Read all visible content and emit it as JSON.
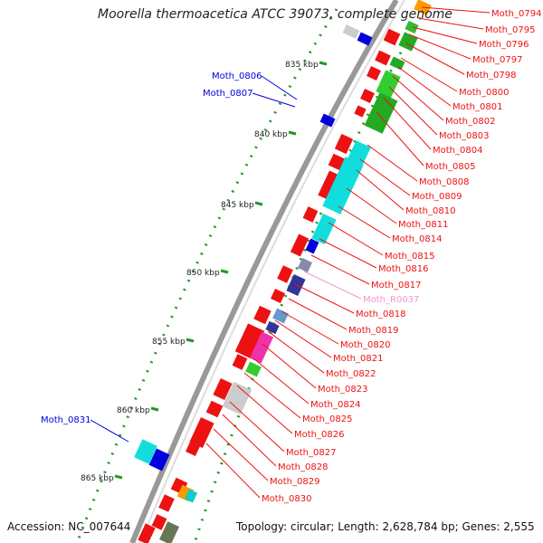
{
  "title": "Moorella thermoacetica ATCC 39073, complete genome",
  "footer": {
    "accession": "Accession: NC_007644",
    "topology": "Topology: circular; Length: 2,628,784 bp; Genes: 2,555"
  },
  "colors": {
    "forward_gene": "#ee1111",
    "reverse_gene": "#0000dd",
    "rna_gene": "#ee99cc",
    "backbone": "#999999",
    "tick": "#229922"
  },
  "scale_ticks": [
    "835 kbp",
    "840 kbp",
    "845 kbp",
    "850 kbp",
    "855 kbp",
    "860 kbp",
    "865 kbp"
  ],
  "left_labels": [
    "Moth_0806",
    "Moth_0807",
    "Moth_0831"
  ],
  "right_labels": [
    "Moth_0794",
    "Moth_0795",
    "Moth_0796",
    "Moth_0797",
    "Moth_0798",
    "Moth_0800",
    "Moth_0801",
    "Moth_0802",
    "Moth_0803",
    "Moth_0804",
    "Moth_0805",
    "Moth_0808",
    "Moth_0809",
    "Moth_0810",
    "Moth_0811",
    "Moth_0814",
    "Moth_0815",
    "Moth_0816",
    "Moth_0817",
    "Moth_R0037",
    "Moth_0818",
    "Moth_0819",
    "Moth_0820",
    "Moth_0821",
    "Moth_0822",
    "Moth_0823",
    "Moth_0824",
    "Moth_0825",
    "Moth_0826",
    "Moth_0827",
    "Moth_0828",
    "Moth_0829",
    "Moth_0830"
  ]
}
